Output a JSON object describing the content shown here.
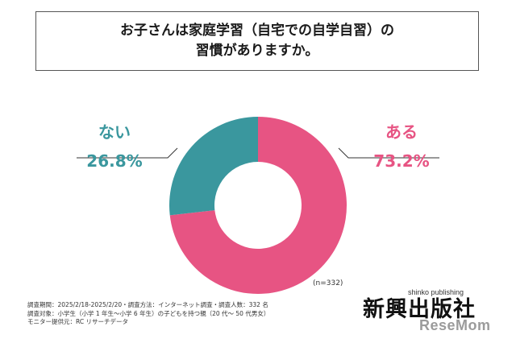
{
  "title": {
    "line1": "お子さんは家庭学習（自宅での自学自習）の",
    "line2": "習慣がありますか。"
  },
  "chart_data": {
    "type": "pie",
    "donut": true,
    "start": "12 o'clock, clockwise",
    "slices": [
      {
        "label": "ある",
        "value": 73.2,
        "value_text": "73.2%",
        "color": "#e75483"
      },
      {
        "label": "ない",
        "value": 26.8,
        "value_text": "26.8%",
        "color": "#3a979e"
      }
    ],
    "sample_note": "(n=332)"
  },
  "footer": {
    "survey_info": "調査期間：2025/2/18-2025/2/20・調査方法：インターネット調査・調査人数：332 名",
    "survey_target": "調査対象：小学生（小学 1 年生～小学 6 年生）の子どもを持つ親（20 代～ 50 代男女）",
    "monitor": "モニター提供元：RC リサーチデータ"
  },
  "brand": {
    "name": "新興出版社",
    "sub": "shinko publishing",
    "watermark": "ReseMom"
  }
}
